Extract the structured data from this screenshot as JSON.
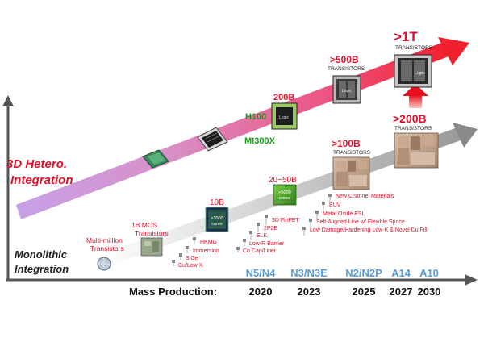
{
  "tracks": {
    "hetero_label": [
      "3D Hetero.",
      "Integration"
    ],
    "mono_label": [
      "Monolithic",
      "Integration"
    ]
  },
  "hetero_items": [
    {
      "label": "H100",
      "color": "#1a9a1a"
    },
    {
      "label": "MI300X",
      "color": "#1a9a1a"
    },
    {
      "label": "200B",
      "sub": ""
    },
    {
      "label": ">500B",
      "sub": "TRANSISTORS"
    },
    {
      "label": ">1T",
      "sub": "TRANSISTORS"
    }
  ],
  "mono_items": [
    {
      "label": "Multi-million",
      "sub": "Transistors"
    },
    {
      "label": "1B MOS",
      "sub": "Transistors"
    },
    {
      "label": "10B"
    },
    {
      "label": "20~50B"
    },
    {
      "label": ">100B",
      "sub": "TRANSISTORS"
    },
    {
      "label": ">200B",
      "sub": "TRANSISTORS"
    }
  ],
  "chip_text": {
    "c10b": [
      ">2000",
      "cores"
    ],
    "c20b": [
      ">5000",
      "cores"
    ],
    "logic": "Logic"
  },
  "technologies": [
    "Cu/Low-K",
    "SiGe",
    "Immersion",
    "HKMG",
    "Co Cap/Liner",
    "Low-R Barrier",
    "ELK",
    "2P2E",
    "3D FinFET",
    "Low Damage/Hardening Low-K & Novel Cu Fill",
    "Self-Aligned Line w/ Flexible Space",
    "Metal Oxide ESL",
    "EUV",
    "New Channel Materials"
  ],
  "nodes": [
    "N5/N4",
    "N3/N3E",
    "N2/N2P",
    "A14",
    "A10"
  ],
  "years": [
    "2020",
    "2023",
    "2025",
    "2027",
    "2030"
  ],
  "axis_label": "Mass Production:",
  "colors": {
    "red": "#e0102a",
    "node_blue": "#5b9bd5",
    "green": "#1a9a1a",
    "axis": "#555555"
  }
}
